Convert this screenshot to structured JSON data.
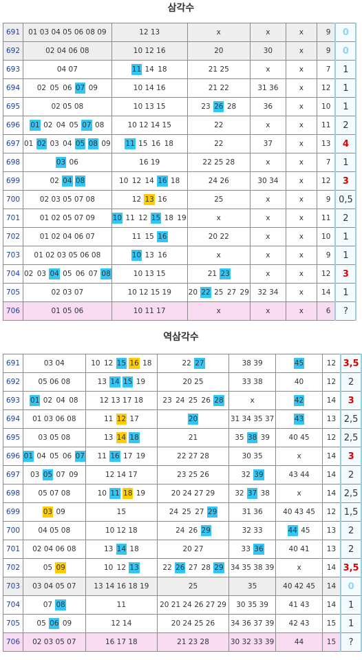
{
  "tables": [
    {
      "title": "삼각수",
      "rows": [
        {
          "bg": "#eeeeee",
          "cells": [
            "691",
            "01 03 04 05 06 08 09",
            "12 13",
            "x",
            "x",
            "x",
            "9",
            [
              {
                "text": "0",
                "color": "#8fd6ee"
              }
            ]
          ]
        },
        {
          "bg": "#eeeeee",
          "cells": [
            "692",
            "02 04 06 08",
            "10 12 16",
            "20",
            "30",
            "x",
            "9",
            [
              {
                "text": "0",
                "color": "#8fd6ee"
              }
            ]
          ]
        },
        {
          "cells": [
            "693",
            "04 07",
            [
              {
                "text": "11",
                "hl": "#33c6f4"
              },
              "14",
              "18"
            ],
            "21 25",
            "x",
            "x",
            "7",
            "1"
          ]
        },
        {
          "cells": [
            "694",
            [
              "02",
              "05",
              "06",
              {
                "text": "07",
                "hl": "#33c6f4"
              },
              "09"
            ],
            "10 14 16",
            "21 22",
            "31 36",
            "x",
            "12",
            "1"
          ]
        },
        {
          "cells": [
            "695",
            "02 05 08",
            "10 13 15",
            [
              "23",
              {
                "text": "26",
                "hl": "#33c6f4"
              },
              "28"
            ],
            "36",
            "x",
            "10",
            "1"
          ]
        },
        {
          "cells": [
            "696",
            [
              {
                "text": "01",
                "hl": "#33c6f4"
              },
              "02",
              "04",
              "05",
              {
                "text": "07",
                "hl": "#33c6f4"
              },
              "08"
            ],
            "10 12 14 15",
            "22",
            "x",
            "x",
            "11",
            "2"
          ]
        },
        {
          "cells": [
            "697",
            [
              "01",
              {
                "text": "02",
                "hl": "#33c6f4"
              },
              "03",
              "04",
              {
                "text": "05",
                "hl": "#33c6f4"
              },
              {
                "text": "08",
                "hl": "#33c6f4"
              },
              "09"
            ],
            [
              {
                "text": "11",
                "hl": "#33c6f4"
              },
              "15",
              "16",
              "18"
            ],
            "22",
            "37",
            "x",
            "13",
            [
              {
                "text": "4",
                "color": "#e00000"
              }
            ]
          ]
        },
        {
          "cells": [
            "698",
            [
              {
                "text": "03",
                "hl": "#33c6f4"
              },
              "06"
            ],
            "16 19",
            "22 25 28",
            "x",
            "x",
            "7",
            "1"
          ]
        },
        {
          "cells": [
            "699",
            [
              "02",
              {
                "text": "04",
                "hl": "#33c6f4"
              },
              {
                "text": "08",
                "hl": "#33c6f4"
              }
            ],
            [
              "10",
              "12",
              "14",
              {
                "text": "16",
                "hl": "#33c6f4"
              },
              "18"
            ],
            "24 26",
            "30 34",
            "x",
            "12",
            [
              {
                "text": "3",
                "color": "#e00000"
              }
            ]
          ]
        },
        {
          "cells": [
            "700",
            "02 03 05 07 08",
            [
              "12",
              {
                "text": "13",
                "hl": "#ffcc00"
              },
              "16"
            ],
            "25",
            "x",
            "x",
            "9",
            "0,5"
          ]
        },
        {
          "cells": [
            "701",
            "01 02 05 07 09",
            [
              {
                "text": "10",
                "hl": "#33c6f4"
              },
              "11",
              "12",
              {
                "text": "15",
                "hl": "#33c6f4"
              },
              "18",
              "19"
            ],
            "x",
            "x",
            "x",
            "11",
            "2"
          ]
        },
        {
          "cells": [
            "702",
            "01 02 04 06 07",
            [
              "11",
              "15",
              {
                "text": "16",
                "hl": "#33c6f4"
              }
            ],
            "20 22",
            "x",
            "x",
            "10",
            "1"
          ]
        },
        {
          "cells": [
            "703",
            "01 02 03 05 06 08",
            [
              {
                "text": "10",
                "hl": "#33c6f4"
              },
              "13",
              "16"
            ],
            "x",
            "x",
            "x",
            "9",
            "1"
          ]
        },
        {
          "cells": [
            "704",
            [
              "02",
              "03",
              {
                "text": "04",
                "hl": "#33c6f4"
              },
              "05",
              "06",
              "07",
              {
                "text": "08",
                "hl": "#33c6f4"
              }
            ],
            "10 13 15",
            [
              "21",
              {
                "text": "23",
                "hl": "#33c6f4"
              }
            ],
            "x",
            "x",
            "12",
            [
              {
                "text": "3",
                "color": "#e00000"
              }
            ]
          ]
        },
        {
          "cells": [
            "705",
            "02 03 07",
            "10 12 15 19",
            [
              "20",
              {
                "text": "22",
                "hl": "#33c6f4"
              },
              "25",
              "27",
              "29"
            ],
            "32 34",
            "x",
            "14",
            "1"
          ]
        },
        {
          "bg": "#f9dcf2",
          "cells": [
            "706",
            "01 05 06",
            "10 11 17",
            "x",
            "x",
            "x",
            "6",
            "?"
          ]
        }
      ]
    },
    {
      "title": "역삼각수",
      "rows": [
        {
          "cells": [
            "691",
            "03 04",
            [
              "10",
              "12",
              {
                "text": "15",
                "hl": "#33c6f4"
              },
              {
                "text": "16",
                "hl": "#ffcc00"
              },
              "18"
            ],
            [
              "22",
              {
                "text": "27",
                "hl": "#33c6f4"
              }
            ],
            "38 39",
            [
              {
                "text": "45",
                "hl": "#33c6f4"
              }
            ],
            "12",
            [
              {
                "text": "3,5",
                "color": "#e00000"
              }
            ]
          ]
        },
        {
          "cells": [
            "692",
            "05 06 08",
            [
              "13",
              {
                "text": "14",
                "hl": "#33c6f4"
              },
              {
                "text": "15",
                "hl": "#33c6f4"
              },
              "19"
            ],
            "20 25",
            "33 38",
            "40",
            "12",
            "2"
          ]
        },
        {
          "cells": [
            "693",
            [
              {
                "text": "01",
                "hl": "#33c6f4"
              },
              "02",
              "04",
              "08"
            ],
            "12 13 17 18",
            [
              "23",
              "24",
              "25",
              "26",
              {
                "text": "28",
                "hl": "#33c6f4"
              }
            ],
            "x",
            [
              {
                "text": "42",
                "hl": "#33c6f4"
              }
            ],
            "14",
            [
              {
                "text": "3",
                "color": "#e00000"
              }
            ]
          ]
        },
        {
          "cells": [
            "694",
            "01 03 06 08",
            [
              "11",
              {
                "text": "12",
                "hl": "#ffcc00"
              },
              "17"
            ],
            [
              {
                "text": "20",
                "hl": "#33c6f4"
              }
            ],
            "31 34 35 37",
            [
              {
                "text": "43",
                "hl": "#33c6f4"
              }
            ],
            "13",
            "2,5"
          ]
        },
        {
          "cells": [
            "695",
            "03 05 08",
            [
              "13",
              {
                "text": "14",
                "hl": "#ffcc00"
              },
              {
                "text": "18",
                "hl": "#33c6f4"
              }
            ],
            "21",
            [
              "35",
              {
                "text": "38",
                "hl": "#33c6f4"
              },
              "39"
            ],
            "40 45",
            "12",
            "2,5"
          ]
        },
        {
          "cells": [
            "696",
            [
              {
                "text": "01",
                "hl": "#33c6f4"
              },
              "04",
              "05",
              "06",
              {
                "text": "07",
                "hl": "#33c6f4"
              }
            ],
            [
              "11",
              {
                "text": "16",
                "hl": "#33c6f4"
              },
              "17",
              "19"
            ],
            "22 27 28",
            "30 35",
            "x",
            "14",
            [
              {
                "text": "3",
                "color": "#e00000"
              }
            ]
          ]
        },
        {
          "cells": [
            "697",
            [
              "03",
              {
                "text": "05",
                "hl": "#33c6f4"
              },
              "07",
              "09"
            ],
            "12 14 17",
            "23 25 26",
            [
              "32",
              {
                "text": "39",
                "hl": "#33c6f4"
              }
            ],
            "43 44",
            "14",
            "2"
          ]
        },
        {
          "cells": [
            "698",
            "05 07 08",
            [
              "10",
              {
                "text": "11",
                "hl": "#33c6f4"
              },
              {
                "text": "18",
                "hl": "#ffcc00"
              },
              "19"
            ],
            "20 24 27 29",
            [
              "32",
              {
                "text": "37",
                "hl": "#33c6f4"
              },
              "38"
            ],
            "x",
            "14",
            "2,5"
          ]
        },
        {
          "cells": [
            "699",
            [
              {
                "text": "03",
                "hl": "#ffcc00"
              },
              "09"
            ],
            "15",
            [
              "24",
              "25",
              "27",
              {
                "text": "29",
                "hl": "#33c6f4"
              }
            ],
            "31 36",
            "40 43 45",
            "12",
            "1,5"
          ]
        },
        {
          "cells": [
            "700",
            "04 05 08",
            "10 12 18",
            [
              "24",
              "26",
              {
                "text": "29",
                "hl": "#33c6f4"
              }
            ],
            "32 33",
            [
              {
                "text": "44",
                "hl": "#33c6f4"
              },
              "45"
            ],
            "13",
            "2"
          ]
        },
        {
          "cells": [
            "701",
            "02 04 06 08",
            [
              "13",
              {
                "text": "14",
                "hl": "#33c6f4"
              },
              "18"
            ],
            "20 27",
            [
              "33",
              {
                "text": "36",
                "hl": "#33c6f4"
              }
            ],
            "40 41",
            "13",
            "2"
          ]
        },
        {
          "cells": [
            "702",
            [
              "05",
              {
                "text": "09",
                "hl": "#ffcc00"
              }
            ],
            [
              "10",
              "12",
              {
                "text": "13",
                "hl": "#33c6f4"
              }
            ],
            [
              "22",
              {
                "text": "26",
                "hl": "#33c6f4"
              },
              "27",
              "28",
              {
                "text": "29",
                "hl": "#33c6f4"
              }
            ],
            "34 35 38 39",
            "x",
            "14",
            [
              {
                "text": "3,5",
                "color": "#e00000"
              }
            ]
          ]
        },
        {
          "bg": "#eeeeee",
          "cells": [
            "703",
            "03 04 05 07",
            "13 14 16 18 19",
            "25",
            "35",
            "40 42 45",
            "14",
            [
              {
                "text": "0",
                "color": "#8fd6ee"
              }
            ]
          ]
        },
        {
          "cells": [
            "704",
            [
              "07",
              {
                "text": "08",
                "hl": "#33c6f4"
              }
            ],
            "11",
            "20 21 24 26 27 29",
            "30 35 39",
            "41 43",
            "14",
            "1"
          ]
        },
        {
          "cells": [
            "705",
            [
              "05",
              {
                "text": "06",
                "hl": "#33c6f4"
              },
              "09"
            ],
            "12 14",
            "20 24 25 26",
            "34 36 37 39",
            "42 43",
            "15",
            "1"
          ]
        },
        {
          "bg": "#f9dcf2",
          "cells": [
            "706",
            "02 03 05 07",
            "16 17 18",
            "21 23 28",
            "30 32 33 39",
            "44",
            "15",
            "?"
          ]
        }
      ]
    }
  ]
}
